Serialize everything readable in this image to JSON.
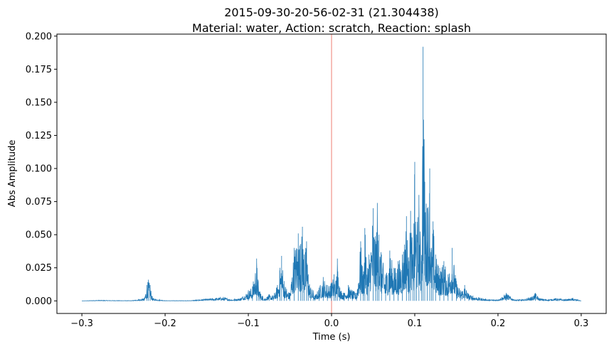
{
  "chart_data": {
    "type": "line",
    "title": "2015-09-30-20-56-02-31 (21.304438)",
    "subtitle": "Material: water, Action: scratch, Reaction: splash",
    "xlabel": "Time (s)",
    "ylabel": "Abs Amplitude",
    "xlim": [
      -0.33,
      0.33
    ],
    "ylim": [
      -0.0095,
      0.2015
    ],
    "xticks": [
      -0.3,
      -0.2,
      -0.1,
      0.0,
      0.1,
      0.2,
      0.3
    ],
    "xtick_labels": [
      "−0.3",
      "−0.2",
      "−0.1",
      "0.0",
      "0.1",
      "0.2",
      "0.3"
    ],
    "yticks": [
      0.0,
      0.025,
      0.05,
      0.075,
      0.1,
      0.125,
      0.15,
      0.175,
      0.2
    ],
    "ytick_labels": [
      "0.000",
      "0.025",
      "0.050",
      "0.075",
      "0.100",
      "0.125",
      "0.150",
      "0.175",
      "0.200"
    ],
    "grid": false,
    "vline": {
      "x": 0.0,
      "color": "#f4a9a0"
    },
    "series": [
      {
        "color": "#1f77b4",
        "x": [
          -0.3,
          -0.28,
          -0.26,
          -0.24,
          -0.225,
          -0.222,
          -0.22,
          -0.218,
          -0.215,
          -0.2,
          -0.17,
          -0.13,
          -0.12,
          -0.11,
          -0.1,
          -0.095,
          -0.09,
          -0.088,
          -0.086,
          -0.083,
          -0.08,
          -0.075,
          -0.07,
          -0.065,
          -0.062,
          -0.06,
          -0.057,
          -0.054,
          -0.05,
          -0.045,
          -0.04,
          -0.037,
          -0.035,
          -0.033,
          -0.03,
          -0.028,
          -0.025,
          -0.022,
          -0.02,
          -0.015,
          -0.01,
          -0.005,
          0.0,
          0.003,
          0.005,
          0.007,
          0.01,
          0.015,
          0.02,
          0.025,
          0.03,
          0.035,
          0.038,
          0.04,
          0.043,
          0.045,
          0.05,
          0.053,
          0.055,
          0.057,
          0.06,
          0.065,
          0.07,
          0.075,
          0.08,
          0.085,
          0.09,
          0.093,
          0.095,
          0.098,
          0.1,
          0.102,
          0.105,
          0.108,
          0.11,
          0.112,
          0.115,
          0.118,
          0.12,
          0.122,
          0.125,
          0.13,
          0.135,
          0.14,
          0.145,
          0.15,
          0.155,
          0.16,
          0.165,
          0.17,
          0.18,
          0.19,
          0.2,
          0.21,
          0.22,
          0.23,
          0.24,
          0.245,
          0.25,
          0.26,
          0.27,
          0.28,
          0.29,
          0.3
        ],
        "y": [
          0.0,
          0.0005,
          0.0003,
          0.0002,
          0.002,
          0.012,
          0.016,
          0.012,
          0.002,
          0.0002,
          0.0002,
          0.003,
          0.001,
          0.002,
          0.008,
          0.011,
          0.032,
          0.015,
          0.007,
          0.004,
          0.002,
          0.005,
          0.004,
          0.012,
          0.025,
          0.034,
          0.015,
          0.009,
          0.006,
          0.04,
          0.051,
          0.043,
          0.056,
          0.035,
          0.045,
          0.02,
          0.01,
          0.008,
          0.004,
          0.01,
          0.018,
          0.012,
          0.014,
          0.02,
          0.015,
          0.032,
          0.01,
          0.006,
          0.012,
          0.008,
          0.006,
          0.045,
          0.02,
          0.055,
          0.025,
          0.035,
          0.07,
          0.045,
          0.074,
          0.05,
          0.035,
          0.02,
          0.038,
          0.025,
          0.03,
          0.035,
          0.064,
          0.03,
          0.068,
          0.035,
          0.105,
          0.05,
          0.08,
          0.03,
          0.192,
          0.09,
          0.07,
          0.1,
          0.04,
          0.06,
          0.035,
          0.025,
          0.03,
          0.02,
          0.04,
          0.015,
          0.008,
          0.012,
          0.005,
          0.004,
          0.002,
          0.001,
          0.001,
          0.006,
          0.001,
          0.001,
          0.003,
          0.006,
          0.002,
          0.001,
          0.002,
          0.001,
          0.002,
          0.0
        ]
      }
    ]
  }
}
